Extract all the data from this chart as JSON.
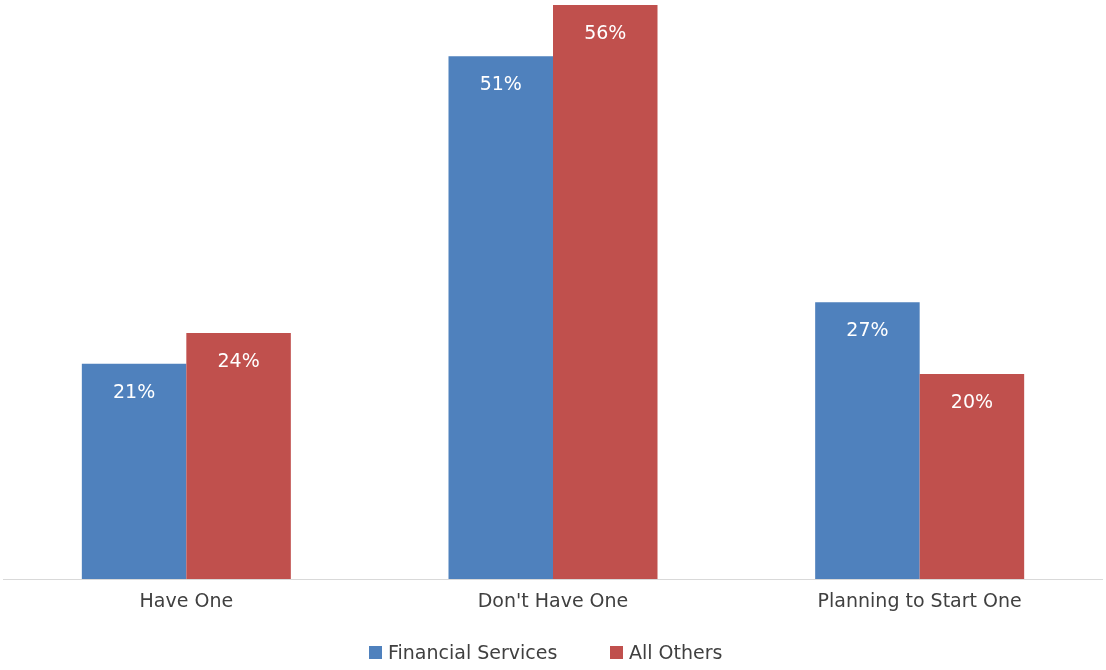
{
  "chart_data": {
    "type": "bar",
    "categories": [
      "Have One",
      "Don't Have One",
      "Planning to Start One"
    ],
    "series": [
      {
        "name": "Financial Services",
        "color": "#4f81bd",
        "values": [
          21,
          51,
          27
        ],
        "value_labels": [
          "21%",
          "51%",
          "27%"
        ]
      },
      {
        "name": "All Others",
        "color": "#c0504d",
        "values": [
          24,
          56,
          20
        ],
        "value_labels": [
          "24%",
          "56%",
          "20%"
        ]
      }
    ],
    "tick_labels": "x",
    "legend": "bottom"
  }
}
